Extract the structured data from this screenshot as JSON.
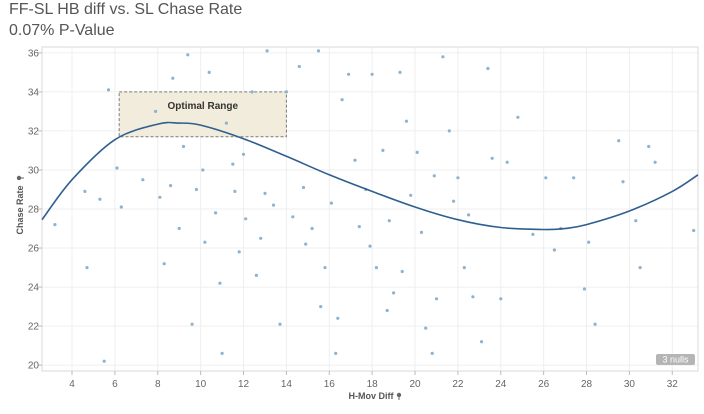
{
  "chart_data": {
    "type": "scatter",
    "title": "FF-SL HB diff vs. SL Chase Rate",
    "subtitle": "0.07% P-Value",
    "xlabel": "H-Mov Diff",
    "ylabel": "Chase Rate",
    "xlim": [
      2.6,
      33.2
    ],
    "ylim": [
      19.7,
      36.3
    ],
    "x_ticks": [
      4,
      6,
      8,
      10,
      12,
      14,
      16,
      18,
      20,
      22,
      24,
      26,
      28,
      30,
      32
    ],
    "y_ticks": [
      20,
      22,
      24,
      26,
      28,
      30,
      32,
      34,
      36
    ],
    "point_color": "#8fb3cf",
    "trend_color": "#2f5f8f",
    "trend_type": "polynomial (cubic)",
    "trend_line": {
      "x": [
        2.6,
        4,
        6,
        8,
        9,
        10,
        12,
        14,
        16,
        18,
        20,
        22,
        24,
        26,
        27,
        28,
        30,
        32,
        33.2
      ],
      "y": [
        27.45,
        29.5,
        31.55,
        32.35,
        32.4,
        32.3,
        31.6,
        30.7,
        29.75,
        28.9,
        28.1,
        27.45,
        27.05,
        26.95,
        27.0,
        27.2,
        27.9,
        28.9,
        29.75
      ]
    },
    "annotation": {
      "label": "Optimal Range",
      "x_range": [
        6.2,
        14.0
      ],
      "y_range": [
        31.7,
        34.0
      ],
      "fill": "#f2ecdc",
      "stroke": "#7a7a7a"
    },
    "nulls_badge": "3 nulls",
    "points": [
      [
        3.2,
        27.2
      ],
      [
        4.6,
        28.9
      ],
      [
        4.7,
        25.0
      ],
      [
        5.3,
        28.5
      ],
      [
        5.5,
        20.2
      ],
      [
        5.7,
        34.1
      ],
      [
        6.1,
        30.1
      ],
      [
        6.3,
        28.1
      ],
      [
        7.3,
        29.5
      ],
      [
        7.9,
        33.0
      ],
      [
        8.1,
        28.6
      ],
      [
        8.3,
        25.2
      ],
      [
        8.6,
        29.2
      ],
      [
        8.7,
        34.7
      ],
      [
        9.2,
        31.2
      ],
      [
        9.4,
        35.9
      ],
      [
        9.6,
        22.1
      ],
      [
        9.8,
        29.0
      ],
      [
        10.1,
        30.0
      ],
      [
        10.2,
        26.3
      ],
      [
        10.4,
        35.0
      ],
      [
        10.7,
        27.8
      ],
      [
        11.0,
        20.6
      ],
      [
        11.2,
        32.4
      ],
      [
        11.5,
        30.3
      ],
      [
        11.8,
        25.8
      ],
      [
        12.0,
        30.8
      ],
      [
        12.1,
        27.5
      ],
      [
        12.4,
        34.0
      ],
      [
        12.8,
        26.5
      ],
      [
        13.1,
        36.1
      ],
      [
        13.4,
        28.2
      ],
      [
        13.7,
        22.1
      ],
      [
        14.0,
        34.0
      ],
      [
        14.3,
        27.6
      ],
      [
        14.6,
        35.3
      ],
      [
        14.9,
        26.2
      ],
      [
        15.2,
        27.0
      ],
      [
        15.5,
        36.1
      ],
      [
        15.8,
        25.0
      ],
      [
        16.1,
        28.3
      ],
      [
        16.4,
        22.4
      ],
      [
        16.6,
        33.6
      ],
      [
        16.9,
        34.9
      ],
      [
        17.2,
        30.5
      ],
      [
        17.4,
        27.1
      ],
      [
        17.7,
        29.0
      ],
      [
        18.0,
        34.9
      ],
      [
        18.2,
        25.0
      ],
      [
        18.5,
        31.0
      ],
      [
        18.8,
        27.4
      ],
      [
        19.0,
        23.7
      ],
      [
        19.3,
        35.0
      ],
      [
        19.6,
        32.5
      ],
      [
        19.8,
        28.7
      ],
      [
        20.1,
        30.9
      ],
      [
        20.3,
        26.8
      ],
      [
        20.5,
        21.9
      ],
      [
        20.8,
        20.6
      ],
      [
        21.0,
        23.4
      ],
      [
        21.3,
        35.8
      ],
      [
        21.6,
        32.0
      ],
      [
        21.8,
        28.4
      ],
      [
        22.0,
        29.6
      ],
      [
        22.3,
        25.0
      ],
      [
        22.7,
        23.5
      ],
      [
        23.1,
        21.2
      ],
      [
        23.4,
        35.2
      ],
      [
        23.6,
        30.6
      ],
      [
        24.0,
        23.4
      ],
      [
        24.3,
        30.4
      ],
      [
        24.8,
        32.7
      ],
      [
        25.5,
        26.7
      ],
      [
        26.1,
        29.6
      ],
      [
        26.8,
        27.0
      ],
      [
        27.4,
        29.6
      ],
      [
        27.9,
        23.9
      ],
      [
        28.4,
        22.1
      ],
      [
        29.5,
        31.5
      ],
      [
        29.7,
        29.4
      ],
      [
        30.3,
        27.4
      ],
      [
        30.5,
        25.0
      ],
      [
        30.9,
        31.2
      ],
      [
        31.2,
        30.4
      ],
      [
        33.0,
        26.9
      ],
      [
        12.6,
        24.6
      ],
      [
        14.8,
        29.1
      ],
      [
        16.3,
        20.6
      ],
      [
        17.9,
        26.1
      ],
      [
        19.4,
        24.8
      ],
      [
        20.9,
        29.7
      ],
      [
        22.5,
        27.7
      ],
      [
        26.5,
        25.9
      ],
      [
        28.1,
        26.3
      ],
      [
        10.9,
        24.2
      ],
      [
        11.6,
        28.9
      ],
      [
        15.6,
        23.0
      ],
      [
        13.0,
        28.8
      ],
      [
        18.7,
        22.8
      ],
      [
        9.0,
        27.0
      ]
    ]
  }
}
